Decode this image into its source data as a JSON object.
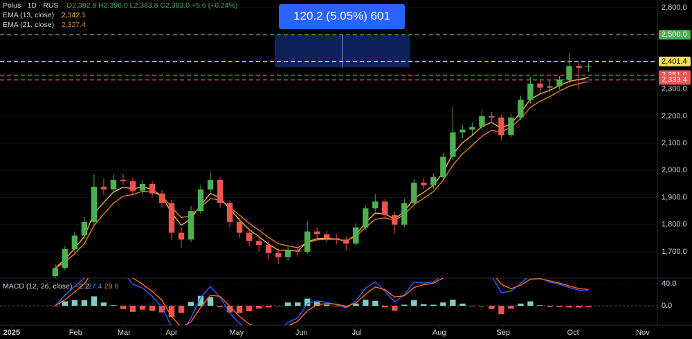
{
  "chart_data": {
    "type": "candlestick",
    "legend": {
      "symbol": "Polus · 1D · RUS",
      "ohlc": "O2,382.8  H2,396.0  L2,363.8  C2,383.0  +5.6 (+0.24%)",
      "ema13": "EMA (13, close)",
      "ema13_value": "2,342.1",
      "ema21": "EMA (21, close)",
      "ema21_value": "2,327.4"
    },
    "up_color": "#4caf50",
    "down_color": "#ef5350",
    "candles": [
      [
        1610,
        1655,
        1600,
        1640
      ],
      [
        1640,
        1722,
        1632,
        1710
      ],
      [
        1710,
        1775,
        1698,
        1760
      ],
      [
        1760,
        1828,
        1745,
        1810
      ],
      [
        1810,
        1985,
        1800,
        1940
      ],
      [
        1940,
        1968,
        1910,
        1930
      ],
      [
        1930,
        1985,
        1918,
        1965
      ],
      [
        1965,
        1988,
        1945,
        1960
      ],
      [
        1960,
        1972,
        1905,
        1925
      ],
      [
        1925,
        1965,
        1912,
        1950
      ],
      [
        1950,
        1962,
        1900,
        1915
      ],
      [
        1915,
        1928,
        1865,
        1880
      ],
      [
        1880,
        1892,
        1745,
        1770
      ],
      [
        1770,
        1790,
        1715,
        1745
      ],
      [
        1745,
        1868,
        1735,
        1850
      ],
      [
        1850,
        1948,
        1840,
        1930
      ],
      [
        1930,
        1995,
        1918,
        1965
      ],
      [
        1965,
        1975,
        1862,
        1880
      ],
      [
        1880,
        1890,
        1790,
        1810
      ],
      [
        1810,
        1825,
        1752,
        1770
      ],
      [
        1770,
        1785,
        1722,
        1740
      ],
      [
        1740,
        1760,
        1700,
        1725
      ],
      [
        1725,
        1740,
        1672,
        1695
      ],
      [
        1695,
        1712,
        1655,
        1680
      ],
      [
        1680,
        1722,
        1668,
        1705
      ],
      [
        1705,
        1718,
        1682,
        1700
      ],
      [
        1700,
        1812,
        1692,
        1775
      ],
      [
        1775,
        1790,
        1748,
        1765
      ],
      [
        1765,
        1778,
        1735,
        1750
      ],
      [
        1750,
        1765,
        1728,
        1745
      ],
      [
        1745,
        1758,
        1705,
        1730
      ],
      [
        1730,
        1805,
        1722,
        1790
      ],
      [
        1790,
        1872,
        1780,
        1860
      ],
      [
        1860,
        1912,
        1848,
        1885
      ],
      [
        1885,
        1895,
        1822,
        1835
      ],
      [
        1835,
        1848,
        1768,
        1800
      ],
      [
        1800,
        1895,
        1790,
        1880
      ],
      [
        1880,
        1968,
        1870,
        1955
      ],
      [
        1955,
        1972,
        1930,
        1945
      ],
      [
        1945,
        1990,
        1932,
        1975
      ],
      [
        1975,
        2065,
        1965,
        2050
      ],
      [
        2050,
        2235,
        2040,
        2140
      ],
      [
        2140,
        2168,
        2118,
        2150
      ],
      [
        2150,
        2178,
        2132,
        2160
      ],
      [
        2160,
        2222,
        2148,
        2200
      ],
      [
        2200,
        2215,
        2175,
        2195
      ],
      [
        2195,
        2205,
        2110,
        2130
      ],
      [
        2130,
        2212,
        2120,
        2195
      ],
      [
        2195,
        2275,
        2185,
        2260
      ],
      [
        2260,
        2345,
        2248,
        2320
      ],
      [
        2320,
        2338,
        2285,
        2305
      ],
      [
        2305,
        2332,
        2290,
        2310
      ],
      [
        2310,
        2348,
        2298,
        2335
      ],
      [
        2335,
        2432,
        2322,
        2385
      ],
      [
        2385,
        2398,
        2300,
        2377.4
      ],
      [
        2382.8,
        2396.0,
        2363.8,
        2383.0
      ]
    ],
    "series": [
      {
        "name": "EMA (13, close)",
        "color": "#f5b041",
        "values": [
          1640,
          1672,
          1712,
          1757,
          1841,
          1882,
          1920,
          1938,
          1932,
          1940,
          1929,
          1906,
          1843,
          1798,
          1822,
          1872,
          1915,
          1899,
          1858,
          1818,
          1782,
          1756,
          1728,
          1706,
          1706,
          1703,
          1736,
          1749,
          1749,
          1747,
          1739,
          1762,
          1807,
          1843,
          1839,
          1821,
          1848,
          1897,
          1919,
          1945,
          1993,
          2061,
          2102,
          2129,
          2162,
          2177,
          2155,
          2173,
          2213,
          2262,
          2282,
          2295,
          2313,
          2328,
          2335,
          2342.1
        ]
      },
      {
        "name": "EMA (21, close)",
        "color": "#e67e22",
        "values": [
          1640,
          1662,
          1693,
          1730,
          1797,
          1839,
          1879,
          1905,
          1911,
          1923,
          1920,
          1907,
          1864,
          1826,
          1834,
          1864,
          1896,
          1891,
          1865,
          1835,
          1805,
          1780,
          1753,
          1730,
          1722,
          1715,
          1734,
          1744,
          1746,
          1746,
          1741,
          1757,
          1790,
          1820,
          1825,
          1817,
          1837,
          1874,
          1897,
          1922,
          1963,
          2019,
          2061,
          2092,
          2126,
          2148,
          2142,
          2159,
          2191,
          2232,
          2255,
          2272,
          2292,
          2310,
          2320,
          2327.4
        ]
      }
    ],
    "ylim": [
      1603,
      2628
    ],
    "yticks": [
      {
        "value": 1700,
        "label": "1,700.0"
      },
      {
        "value": 1800,
        "label": "1,800.0"
      },
      {
        "value": 1900,
        "label": "1,900.0"
      },
      {
        "value": 2000,
        "label": "2,000.0"
      },
      {
        "value": 2100,
        "label": "2,100.0"
      },
      {
        "value": 2200,
        "label": "2,200.0"
      },
      {
        "value": 2300,
        "label": "2,300.0"
      },
      {
        "value": 2600,
        "label": "2,600.0"
      }
    ],
    "hlines": [
      {
        "value": 2500,
        "label": "2,500.0",
        "color": "#4caf50"
      },
      {
        "value": 2401.4,
        "label": "2,401.4",
        "color": "#f4e04d"
      },
      {
        "value": 2351.0,
        "label": "2,351.0",
        "color": "#ef5350"
      },
      {
        "value": 2333.4,
        "label": "2,333.4",
        "color": "#ef5350"
      }
    ],
    "measure": {
      "top": 2500,
      "bottom": 2379.8,
      "label": "120.2 (5.05%) 601"
    },
    "xlim": [
      -5.7,
      62.1
    ],
    "xticks": [
      {
        "value": -4.5,
        "label": "2025"
      },
      {
        "value": 2.1,
        "label": "Feb"
      },
      {
        "value": 7.1,
        "label": "Mar"
      },
      {
        "value": 12,
        "label": "Apr"
      },
      {
        "value": 18.7,
        "label": "May"
      },
      {
        "value": 25.4,
        "label": "Jun"
      },
      {
        "value": 31.1,
        "label": "Jul"
      },
      {
        "value": 39.6,
        "label": "Aug"
      },
      {
        "value": 46.2,
        "label": "Sep"
      },
      {
        "value": 53.4,
        "label": "Oct"
      },
      {
        "value": 60.6,
        "label": "Nov"
      }
    ],
    "macd": {
      "title": "MACD (12, 26, close)",
      "hist_label": "−2.2",
      "macd_label": "27.4",
      "signal_label": "29.6",
      "macd_color": "#2962ff",
      "signal_color": "#ff6d00",
      "hist_up_color": "#80cbc4",
      "hist_down_color": "#ef5350",
      "macd": [
        0,
        19,
        35,
        50,
        82,
        80,
        76,
        61,
        39,
        32,
        17,
        -2,
        -39,
        -52,
        -22,
        15,
        35,
        15,
        -13,
        -32,
        -43,
        -45,
        -47,
        -45,
        -30,
        -22,
        4,
        9,
        6,
        2,
        -4,
        9,
        32,
        43,
        26,
        7,
        20,
        43,
        41,
        43,
        56,
        78,
        76,
        69,
        67,
        54,
        24,
        26,
        41,
        56,
        50,
        43,
        39,
        33,
        28,
        27.4
      ],
      "signal": [
        0,
        11,
        25,
        40,
        65,
        74,
        75,
        67,
        50,
        39,
        26,
        10,
        -19,
        -39,
        -29,
        -3,
        19,
        17,
        -1,
        -19,
        -33,
        -40,
        -44,
        -45,
        -36,
        -28,
        -9,
        2,
        4,
        3,
        -1,
        5,
        21,
        34,
        29,
        16,
        18,
        33,
        38,
        41,
        50,
        67,
        72,
        70,
        68,
        60,
        39,
        31,
        37,
        48,
        49,
        45,
        41,
        36,
        31,
        29.6
      ],
      "histogram": [
        0,
        8,
        10,
        10,
        17,
        6,
        1,
        -6,
        -11,
        -7,
        -9,
        -12,
        -20,
        -13,
        7,
        18,
        16,
        -2,
        -12,
        -13,
        -10,
        -5,
        -3,
        0,
        6,
        6,
        13,
        7,
        2,
        -1,
        -3,
        4,
        11,
        9,
        -3,
        -9,
        2,
        10,
        3,
        2,
        6,
        11,
        4,
        -1,
        -1,
        -6,
        -15,
        -5,
        4,
        8,
        1,
        -2,
        -2,
        -3,
        -3,
        -2.2
      ],
      "ylim": [
        -35,
        50
      ],
      "yticks": [
        {
          "value": 40,
          "label": "40.0"
        },
        {
          "value": 0,
          "label": "0.0"
        }
      ]
    }
  }
}
